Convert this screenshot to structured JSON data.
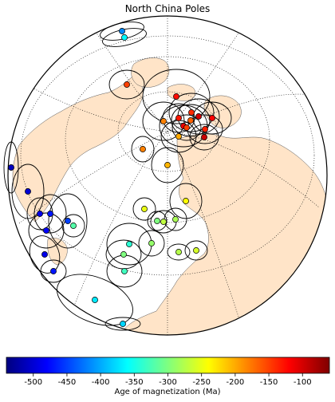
{
  "title": "North China Poles",
  "colorbar": {
    "label": "Age of magnetization (Ma)",
    "min": -540,
    "max": -60,
    "ticks": [
      "-500",
      "-450",
      "-400",
      "-350",
      "-300",
      "-250",
      "-200",
      "-150",
      "-100"
    ],
    "tick_values": [
      -500,
      -450,
      -400,
      -350,
      -300,
      -250,
      -200,
      -150,
      -100
    ],
    "colormap": "jet"
  },
  "colors": {
    "land": "#ffe4c8",
    "ocean": "#ffffff",
    "outline": "#000000",
    "graticule": "#000000"
  },
  "projection": "orthographic",
  "graticule": "dotted",
  "poles": [
    {
      "age": -415,
      "label": "pole"
    },
    {
      "age": -360,
      "label": "pole"
    },
    {
      "age": -150,
      "label": "pole"
    },
    {
      "age": -125,
      "label": "pole"
    },
    {
      "age": -140,
      "label": "pole"
    },
    {
      "age": -165,
      "label": "pole"
    },
    {
      "age": -100,
      "label": "pole"
    },
    {
      "age": -120,
      "label": "pole"
    },
    {
      "age": -180,
      "label": "pole"
    },
    {
      "age": -130,
      "label": "pole"
    },
    {
      "age": -110,
      "label": "pole"
    },
    {
      "age": -150,
      "label": "pole"
    },
    {
      "age": -135,
      "label": "pole"
    },
    {
      "age": -200,
      "label": "pole"
    },
    {
      "age": -95,
      "label": "pole"
    },
    {
      "age": -180,
      "label": "pole"
    },
    {
      "age": -205,
      "label": "pole"
    },
    {
      "age": -510,
      "label": "pole"
    },
    {
      "age": -500,
      "label": "pole"
    },
    {
      "age": -490,
      "label": "pole"
    },
    {
      "age": -470,
      "label": "pole"
    },
    {
      "age": -450,
      "label": "pole"
    },
    {
      "age": -480,
      "label": "pole"
    },
    {
      "age": -320,
      "label": "pole"
    },
    {
      "age": -250,
      "label": "pole"
    },
    {
      "age": -270,
      "label": "pole"
    },
    {
      "age": -280,
      "label": "pole"
    },
    {
      "age": -240,
      "label": "pole"
    },
    {
      "age": -300,
      "label": "pole"
    },
    {
      "age": -290,
      "label": "pole"
    },
    {
      "age": -275,
      "label": "pole"
    },
    {
      "age": -260,
      "label": "pole"
    },
    {
      "age": -340,
      "label": "pole"
    },
    {
      "age": -490,
      "label": "pole"
    },
    {
      "age": -470,
      "label": "pole"
    },
    {
      "age": -300,
      "label": "pole"
    },
    {
      "age": -330,
      "label": "pole"
    },
    {
      "age": -370,
      "label": "pole"
    },
    {
      "age": -380,
      "label": "pole"
    }
  ]
}
